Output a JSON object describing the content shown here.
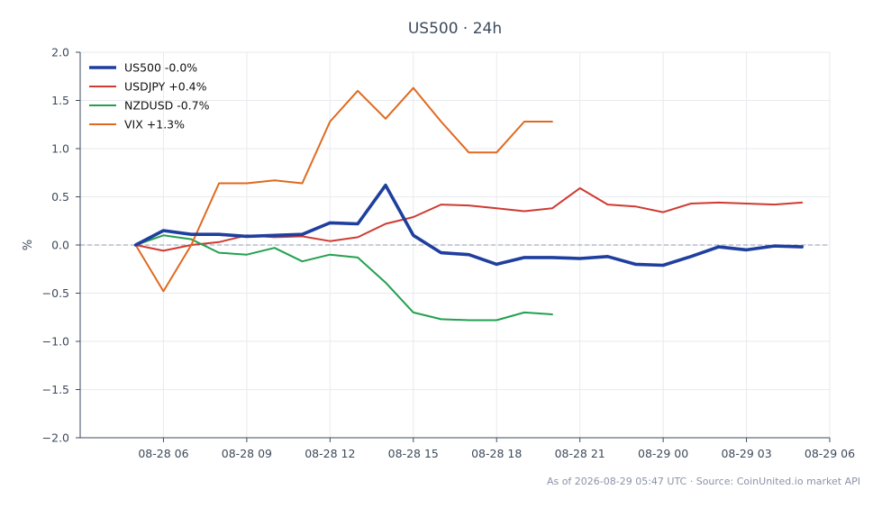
{
  "chart_data": {
    "type": "line",
    "title": "US500 · 24h",
    "xlabel": "",
    "ylabel": "%",
    "ylim": [
      -2.0,
      2.0
    ],
    "yticks": [
      2.0,
      1.5,
      1.0,
      0.5,
      0.0,
      -0.5,
      -1.0,
      -1.5,
      -2.0
    ],
    "ytick_labels": [
      "2.0",
      "1.5",
      "1.0",
      "0.5",
      "0.0",
      "−0.5",
      "−1.0",
      "−1.5",
      "−2.0"
    ],
    "xticks": [
      "08-28 06",
      "08-28 09",
      "08-28 12",
      "08-28 15",
      "08-28 18",
      "08-28 21",
      "08-29 00",
      "08-29 03",
      "08-29 06"
    ],
    "xlim_hours": [
      3.0,
      30.0
    ],
    "x_hours": [
      5,
      6,
      7,
      8,
      9,
      10,
      11,
      12,
      13,
      14,
      15,
      16,
      17,
      18,
      19,
      20,
      21,
      22,
      23,
      24,
      25,
      26,
      27,
      28,
      29
    ],
    "x_note_hour_0": "08-28 00",
    "grid": true,
    "legend_position": "top-left",
    "zero_reference_line": true,
    "series": [
      {
        "name": "US500 -0.0%",
        "color": "#1f3f9e",
        "bold": true,
        "values": [
          0.0,
          0.15,
          0.11,
          0.11,
          0.09,
          0.1,
          0.11,
          0.23,
          0.22,
          0.62,
          0.1,
          -0.08,
          -0.1,
          -0.2,
          -0.13,
          -0.13,
          -0.14,
          -0.12,
          -0.2,
          -0.21,
          -0.12,
          -0.02,
          -0.05,
          -0.01,
          -0.02
        ]
      },
      {
        "name": "USDJPY +0.4%",
        "color": "#d03a32",
        "bold": false,
        "values": [
          0.0,
          -0.06,
          0.0,
          0.03,
          0.1,
          0.08,
          0.09,
          0.04,
          0.08,
          0.22,
          0.29,
          0.42,
          0.41,
          0.38,
          0.35,
          0.38,
          0.59,
          0.42,
          0.4,
          0.34,
          0.43,
          0.44,
          0.43,
          0.42,
          0.44
        ]
      },
      {
        "name": "NZDUSD -0.7%",
        "color": "#22a04f",
        "bold": false,
        "values": [
          0.0,
          0.1,
          0.06,
          -0.08,
          -0.1,
          -0.03,
          -0.17,
          -0.1,
          -0.13,
          -0.39,
          -0.7,
          -0.77,
          -0.78,
          -0.78,
          -0.7,
          -0.72
        ]
      },
      {
        "name": "VIX +1.3%",
        "color": "#e0691f",
        "bold": false,
        "values": [
          0.0,
          -0.48,
          0.0,
          0.64,
          0.64,
          0.67,
          0.64,
          1.28,
          1.6,
          1.31,
          1.63,
          1.28,
          0.96,
          0.96,
          1.28,
          1.28
        ]
      }
    ]
  },
  "footer": "As of 2026-08-29 05:47 UTC · Source: CoinUnited.io market API"
}
